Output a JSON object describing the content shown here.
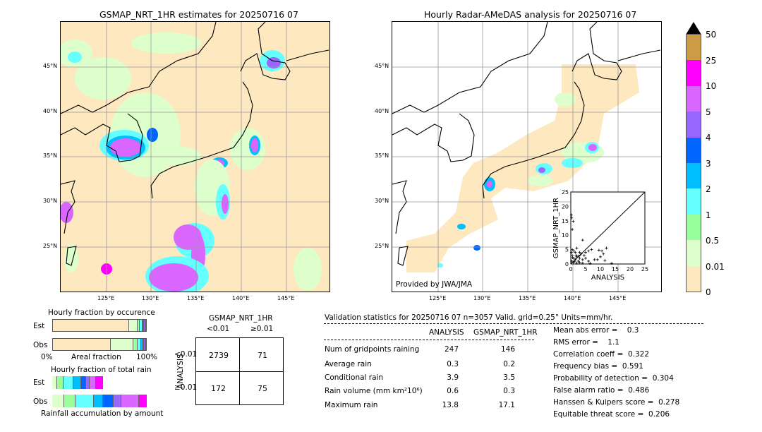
{
  "left_map": {
    "title": "GSMAP_NRT_1HR estimates for 20250716 07"
  },
  "right_map": {
    "title": "Hourly Radar-AMeDAS analysis for 20250716 07",
    "credit": "Provided by JWA/JMA"
  },
  "lat_labels": [
    "45°N",
    "40°N",
    "35°N",
    "30°N",
    "25°N"
  ],
  "lon_labels": [
    "125°E",
    "130°E",
    "135°E",
    "140°E",
    "145°E"
  ],
  "colorbar": {
    "labels": [
      "50",
      "25",
      "10",
      "5",
      "4",
      "3",
      "2",
      "1",
      "0.5",
      "0.01",
      "0"
    ],
    "colors": [
      "#cd9a45",
      "#ff00ff",
      "#d966ff",
      "#9966ff",
      "#0066ff",
      "#00bfff",
      "#66ffff",
      "#99ff99",
      "#ddffcc",
      "#fde8c0"
    ]
  },
  "chart_data": [
    {
      "type": "scatter",
      "xlabel": "ANALYSIS",
      "ylabel": "GSMAP_NRT_1HR",
      "xlim": [
        0,
        25
      ],
      "ylim": [
        0,
        25
      ],
      "xticks": [
        "0",
        "5",
        "10",
        "15",
        "20",
        "25"
      ],
      "yticks": [
        "0",
        "5",
        "10",
        "15",
        "20",
        "25"
      ],
      "points": [
        [
          0.2,
          17
        ],
        [
          0.3,
          16
        ],
        [
          0.8,
          14.8
        ],
        [
          0.5,
          12
        ],
        [
          4,
          8.3
        ],
        [
          0.5,
          5
        ],
        [
          1,
          4.5
        ],
        [
          1.5,
          4
        ],
        [
          2,
          5.5
        ],
        [
          3,
          4
        ],
        [
          3.5,
          3.5
        ],
        [
          4.5,
          3
        ],
        [
          5,
          4
        ],
        [
          6,
          4.5
        ],
        [
          7,
          5
        ],
        [
          9.5,
          4.8
        ],
        [
          10.5,
          4.5
        ],
        [
          12,
          5.5
        ],
        [
          11,
          3.5
        ],
        [
          10,
          2.5
        ],
        [
          9,
          1.5
        ],
        [
          8,
          1.5
        ],
        [
          6,
          1
        ],
        [
          5,
          2
        ],
        [
          4,
          1.5
        ],
        [
          3,
          2
        ],
        [
          2.5,
          1
        ],
        [
          2,
          2.5
        ],
        [
          1.5,
          1.5
        ],
        [
          1,
          2
        ],
        [
          0.5,
          3
        ],
        [
          0.3,
          1
        ],
        [
          0.8,
          0.5
        ],
        [
          1.2,
          0.8
        ],
        [
          2,
          0.3
        ],
        [
          3,
          0.5
        ],
        [
          4,
          0.3
        ],
        [
          11.5,
          1.2
        ],
        [
          13.8,
          0.2
        ],
        [
          6.5,
          0.2
        ],
        [
          0.2,
          4
        ],
        [
          0.6,
          2.2
        ],
        [
          1.8,
          3
        ],
        [
          2.8,
          2.8
        ]
      ]
    },
    {
      "type": "bar",
      "title": "Hourly fraction by occurence",
      "categories": [
        "Est",
        "Obs"
      ],
      "xlabel": "Areal fraction",
      "xticks": [
        "0%",
        "100%"
      ],
      "series": {
        "Est": [
          0.82,
          0.09,
          0.02,
          0.03,
          0.01,
          0.01,
          0.01,
          0.01
        ],
        "Obs": [
          0.62,
          0.24,
          0.05,
          0.04,
          0.02,
          0.01,
          0.01,
          0.01
        ]
      }
    },
    {
      "type": "bar",
      "title": "Hourly fraction of total rain",
      "categories": [
        "Est",
        "Obs"
      ],
      "xlabel": "Rainfall accumulation by amount",
      "series": {
        "Est": [
          0.05,
          0.07,
          0.1,
          0.08,
          0.05,
          0.04,
          0.07,
          0.07
        ],
        "Obs": [
          0.13,
          0.12,
          0.19,
          0.1,
          0.11,
          0.08,
          0.19,
          0.08
        ]
      }
    }
  ],
  "frac": {
    "title1": "Hourly fraction by occurence",
    "title2": "Hourly fraction of total rain",
    "est": "Est",
    "obs": "Obs",
    "x0": "0%",
    "xmid": "Areal fraction",
    "x1": "100%",
    "xlabel2": "Rainfall accumulation by amount"
  },
  "contingency": {
    "col_title": "GSMAP_NRT_1HR",
    "row_title": "ANALYSIS",
    "col_labels": [
      "<0.01",
      "≥0.01"
    ],
    "row_labels": [
      "<0.01",
      "≥0.01"
    ],
    "cells": [
      [
        "2739",
        "71"
      ],
      [
        "172",
        "75"
      ]
    ]
  },
  "stats": {
    "header": "Validation statistics for 20250716 07  n=3057 Valid. grid=0.25° Units=mm/hr.",
    "columns": [
      "ANALYSIS",
      "GSMAP_NRT_1HR"
    ],
    "rows": [
      {
        "label": "Num of gridpoints raining",
        "a": "247",
        "g": "146"
      },
      {
        "label": "Average rain",
        "a": "0.3",
        "g": "0.2"
      },
      {
        "label": "Conditional rain",
        "a": "3.9",
        "g": "3.5"
      },
      {
        "label": "Rain volume (mm km²10⁶)",
        "a": "0.6",
        "g": "0.3"
      },
      {
        "label": "Maximum rain",
        "a": "13.8",
        "g": "17.1"
      }
    ],
    "scores": [
      "Mean abs error =    0.3",
      "RMS error =    1.1",
      "Correlation coeff =  0.322",
      "Frequency bias =  0.591",
      "Probability of detection =  0.304",
      "False alarm ratio =  0.486",
      "Hanssen & Kuipers score =  0.278",
      "Equitable threat score =  0.206"
    ]
  }
}
